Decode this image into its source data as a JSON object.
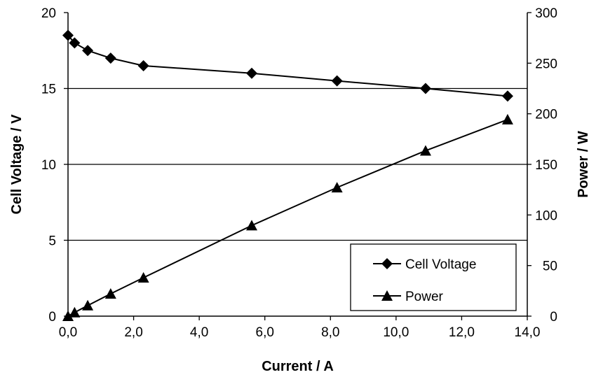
{
  "chart_data": {
    "type": "line",
    "xlabel": "Current / A",
    "ylabel_left": "Cell Voltage / V",
    "ylabel_right": "Power / W",
    "xlim": [
      0,
      14
    ],
    "ylim_left": [
      0,
      20
    ],
    "ylim_right": [
      0,
      300
    ],
    "x_ticks": [
      "0,0",
      "2,0",
      "4,0",
      "6,0",
      "8,0",
      "10,0",
      "12,0",
      "14,0"
    ],
    "y_left_ticks": [
      "0",
      "5",
      "10",
      "15",
      "20"
    ],
    "y_right_ticks": [
      "0",
      "50",
      "100",
      "150",
      "200",
      "250",
      "300"
    ],
    "grid": "horizontal",
    "legend_position": "bottom-right",
    "series": [
      {
        "name": "Cell Voltage",
        "axis": "left",
        "marker": "diamond",
        "color": "#000000",
        "points": [
          [
            0.0,
            18.5
          ],
          [
            0.2,
            18.0
          ],
          [
            0.6,
            17.5
          ],
          [
            1.3,
            17.0
          ],
          [
            2.3,
            16.5
          ],
          [
            5.6,
            16.0
          ],
          [
            8.2,
            15.5
          ],
          [
            10.9,
            15.0
          ],
          [
            13.4,
            14.5
          ]
        ]
      },
      {
        "name": "Power",
        "axis": "right",
        "marker": "triangle",
        "color": "#000000",
        "points": [
          [
            0.0,
            0
          ],
          [
            0.2,
            3.6
          ],
          [
            0.6,
            10.5
          ],
          [
            1.3,
            22.1
          ],
          [
            2.3,
            38
          ],
          [
            5.6,
            89.6
          ],
          [
            8.2,
            127.1
          ],
          [
            10.9,
            163.5
          ],
          [
            13.4,
            194.3
          ]
        ]
      }
    ]
  }
}
